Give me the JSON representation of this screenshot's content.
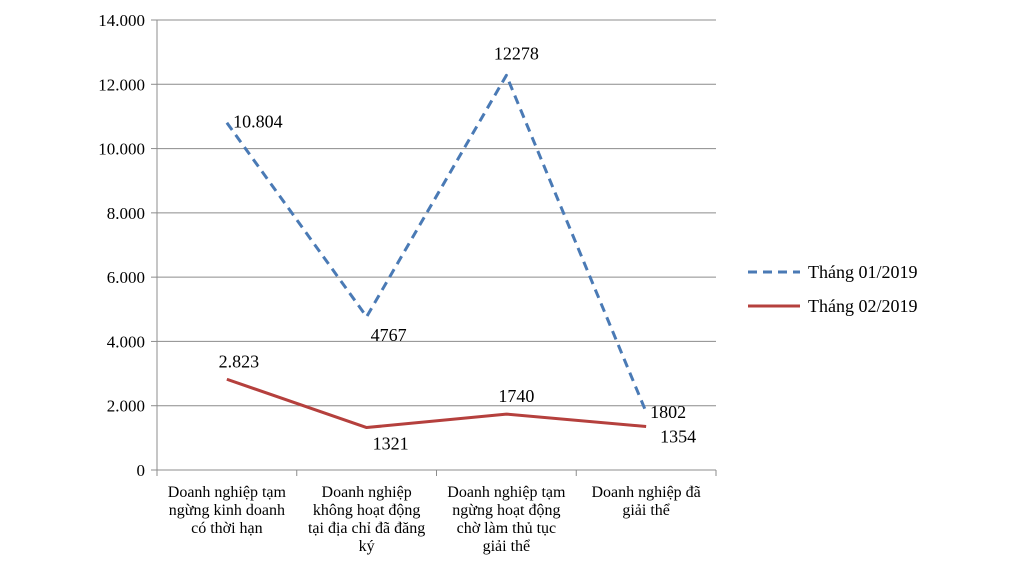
{
  "chart_data": {
    "type": "line",
    "categories": [
      [
        "Doanh nghiệp tạm",
        "ngừng kinh doanh",
        "có thời hạn"
      ],
      [
        "Doanh nghiệp",
        "không hoạt động",
        "tại địa chỉ đã đăng",
        "ký"
      ],
      [
        "Doanh nghiệp tạm",
        "ngừng hoạt động",
        "chờ làm thủ tục",
        "giải thể"
      ],
      [
        "Doanh nghiệp đã",
        "giải thể"
      ]
    ],
    "series": [
      {
        "name": "Tháng 01/2019",
        "values": [
          10804,
          4767,
          12278,
          1802
        ],
        "labels": [
          "10.804",
          "4767",
          "12278",
          "1802"
        ],
        "color": "#4a7ab5",
        "style": "dashed"
      },
      {
        "name": "Tháng 02/2019",
        "values": [
          2823,
          1321,
          1740,
          1354
        ],
        "labels": [
          "2.823",
          "1321",
          "1740",
          "1354"
        ],
        "color": "#b5403d",
        "style": "solid"
      }
    ],
    "y_ticks": [
      "0",
      "2.000",
      "4.000",
      "6.000",
      "8.000",
      "10.000",
      "12.000",
      "14.000"
    ],
    "ylim": [
      0,
      14000
    ],
    "grid": true,
    "legend_position": "right"
  }
}
